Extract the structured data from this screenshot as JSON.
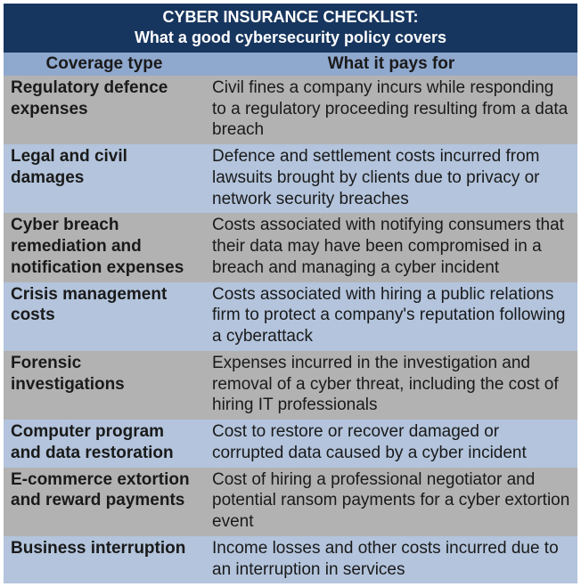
{
  "title": {
    "line1": "CYBER INSURANCE CHECKLIST:",
    "line2": "What a good cybersecurity policy covers"
  },
  "columns": {
    "left": "Coverage type",
    "right": "What it pays for"
  },
  "colors": {
    "title_bg": "#17365f",
    "title_text": "#ffffff",
    "header_bg": "#8fa8ce",
    "row_odd_bg": "#b2b2b2",
    "row_even_bg": "#b3c4dc",
    "text": "#1a1a1a"
  },
  "rows": [
    {
      "coverage": "Regulatory defence expenses",
      "pays": "Civil fines a company incurs while responding to a regulatory proceeding resulting from a data breach"
    },
    {
      "coverage": "Legal and civil damages",
      "pays": "Defence and settlement costs incurred from lawsuits brought by clients due to privacy or network security breaches"
    },
    {
      "coverage": "Cyber breach remediation and notification expenses",
      "pays": "Costs associated with notifying consumers that their data may have been compromised in a breach and managing a cyber incident"
    },
    {
      "coverage": "Crisis management costs",
      "pays": "Costs associated with hiring a public relations firm to protect a company's reputation following a cyberattack"
    },
    {
      "coverage": "Forensic investigations",
      "pays": "Expenses incurred in the investigation and removal of a cyber threat, including the cost of hiring IT professionals"
    },
    {
      "coverage": "Computer program and data restoration",
      "pays": "Cost to restore or recover damaged or corrupted data caused by a cyber incident"
    },
    {
      "coverage": "E-commerce extortion and reward payments",
      "pays": "Cost of hiring a professional negotiator and potential ransom payments for a cyber extortion event"
    },
    {
      "coverage": "Business interruption",
      "pays": "Income losses and other costs incurred due to an interruption in services"
    }
  ]
}
